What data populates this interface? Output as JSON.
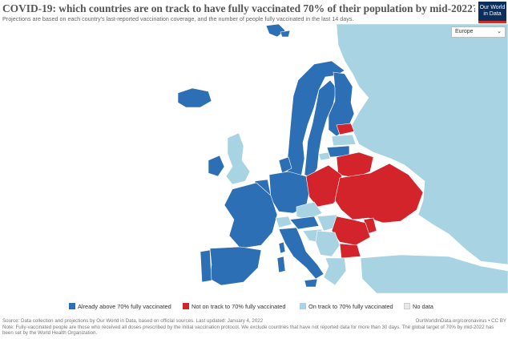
{
  "header": {
    "title": "COVID-19: which countries are on track to have fully vaccinated 70% of their population by mid-2022?",
    "subtitle": "Projections are based on each country's last-reported vaccination coverage, and the number of people fully vaccinated in the last 14 days."
  },
  "logo": {
    "line1": "Our World",
    "line2": "in Data"
  },
  "region_select": {
    "value": "Europe"
  },
  "colors": {
    "above": "#2d6fb5",
    "not_on_track": "#d4242b",
    "on_track": "#a8d3e3",
    "no_data": "#e8e8e8",
    "background": "#ffffff"
  },
  "legend": {
    "items": [
      {
        "label": "Already above 70% fully vaccinated",
        "color": "#2d6fb5"
      },
      {
        "label": "Not on track to 70% fully vaccinated",
        "color": "#d4242b"
      },
      {
        "label": "On track to 70% fully vaccinated",
        "color": "#a8d3e3"
      },
      {
        "label": "No data",
        "color": "#e8e8e8"
      }
    ]
  },
  "footer": {
    "source": "Source: Data collection and projections by Our World in Data, based on official sources. Last updated: January 4, 2022",
    "url": "OurWorldInData.org/coronavirus • CC BY",
    "note": "Note: Fully-vaccinated people are those who received all doses prescribed by the initial vaccination protocol. We exclude countries that have not reported data for more than 30 days. The global target of 70% by mid-2022 has been set by the World Health Organization."
  },
  "map": {
    "regions": [
      {
        "name": "russia",
        "category": "on_track"
      },
      {
        "name": "norway",
        "category": "above"
      },
      {
        "name": "sweden",
        "category": "above"
      },
      {
        "name": "finland",
        "category": "above"
      },
      {
        "name": "iceland",
        "category": "above"
      },
      {
        "name": "svalbard",
        "category": "above"
      },
      {
        "name": "ireland",
        "category": "above"
      },
      {
        "name": "united-kingdom",
        "category": "on_track"
      },
      {
        "name": "denmark",
        "category": "above"
      },
      {
        "name": "france",
        "category": "above"
      },
      {
        "name": "spain",
        "category": "above"
      },
      {
        "name": "portugal",
        "category": "above"
      },
      {
        "name": "italy",
        "category": "above"
      },
      {
        "name": "germany",
        "category": "above"
      },
      {
        "name": "benelux",
        "category": "above"
      },
      {
        "name": "switzerland",
        "category": "on_track"
      },
      {
        "name": "austria",
        "category": "above"
      },
      {
        "name": "czechia",
        "category": "on_track"
      },
      {
        "name": "poland",
        "category": "not_on_track"
      },
      {
        "name": "ukraine",
        "category": "not_on_track"
      },
      {
        "name": "belarus",
        "category": "not_on_track"
      },
      {
        "name": "romania",
        "category": "not_on_track"
      },
      {
        "name": "bulgaria",
        "category": "not_on_track"
      },
      {
        "name": "moldova",
        "category": "not_on_track"
      },
      {
        "name": "estonia",
        "category": "not_on_track"
      },
      {
        "name": "latvia",
        "category": "on_track"
      },
      {
        "name": "lithuania",
        "category": "above"
      },
      {
        "name": "hungary",
        "category": "on_track"
      },
      {
        "name": "croatia",
        "category": "on_track"
      },
      {
        "name": "balkans",
        "category": "on_track"
      },
      {
        "name": "greece",
        "category": "on_track"
      },
      {
        "name": "turkey",
        "category": "on_track"
      },
      {
        "name": "sardinia",
        "category": "above"
      },
      {
        "name": "corsica",
        "category": "above"
      }
    ]
  }
}
